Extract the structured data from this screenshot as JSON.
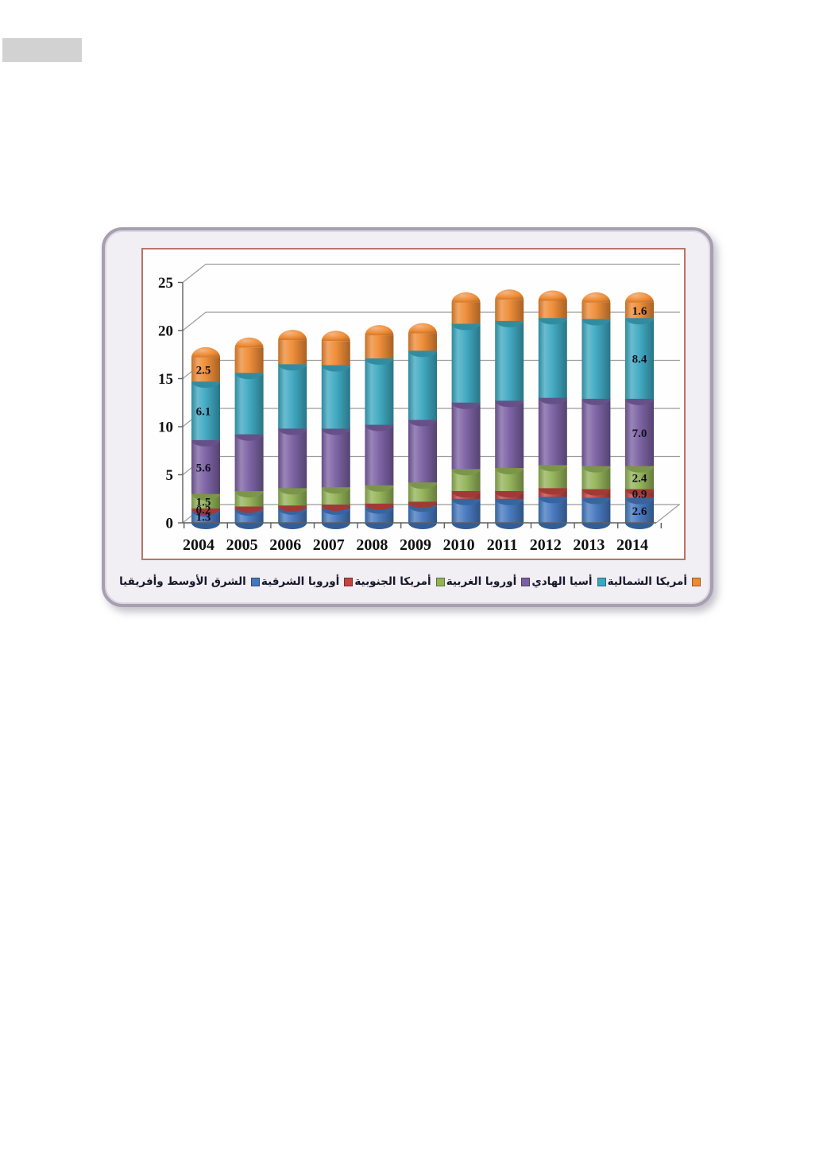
{
  "page": {
    "background": "#ffffff",
    "redaction_box": true
  },
  "chart_data": {
    "type": "bar",
    "subtype": "stacked-cylinder-3d",
    "title": "",
    "xlabel": "",
    "ylabel": "",
    "categories": [
      "2004",
      "2005",
      "2006",
      "2007",
      "2008",
      "2009",
      "2010",
      "2011",
      "2012",
      "2013",
      "2014"
    ],
    "series": [
      {
        "name": "الشرق الأوسط وأفريقيا",
        "color": "#4377BE",
        "values": [
          1.3,
          1.4,
          1.5,
          1.5,
          1.6,
          1.8,
          2.5,
          2.5,
          2.7,
          2.6,
          2.6
        ]
      },
      {
        "name": "أوروبا الشرقية",
        "color": "#C04540",
        "values": [
          0.2,
          0.3,
          0.3,
          0.4,
          0.4,
          0.4,
          0.8,
          0.8,
          0.9,
          0.9,
          0.9
        ]
      },
      {
        "name": "أمريكا الجنوبية",
        "color": "#92B356",
        "values": [
          1.5,
          1.6,
          1.8,
          1.8,
          1.9,
          2.0,
          2.3,
          2.4,
          2.4,
          2.4,
          2.4
        ]
      },
      {
        "name": "أوروبا الغربية",
        "color": "#7A5FA2",
        "values": [
          5.6,
          5.9,
          6.2,
          6.1,
          6.3,
          6.5,
          6.9,
          7.0,
          7.0,
          7.0,
          7.0
        ]
      },
      {
        "name": "أسيا الهادي",
        "color": "#3BA7C0",
        "values": [
          6.1,
          6.4,
          6.7,
          6.6,
          6.9,
          7.2,
          8.2,
          8.3,
          8.3,
          8.3,
          8.4
        ]
      },
      {
        "name": "أمريكا الشمالية",
        "color": "#EE8A33",
        "values": [
          2.5,
          2.6,
          2.5,
          2.5,
          2.4,
          1.8,
          2.2,
          2.2,
          1.8,
          1.7,
          1.6
        ]
      }
    ],
    "labeled_categories": [
      "2004",
      "2014"
    ],
    "data_labels": {
      "2004": [
        "1.3",
        "0.2",
        "1.5",
        "5.6",
        "6.1",
        "2.5"
      ],
      "2014": [
        "2.6",
        "0.9",
        "2.4",
        "7.0",
        "8.4",
        "1.6"
      ]
    },
    "ylim": [
      0,
      25
    ],
    "yticks": [
      0,
      5,
      10,
      15,
      20,
      25
    ],
    "grid": true,
    "legend_position": "bottom",
    "legend_rtl": true
  }
}
